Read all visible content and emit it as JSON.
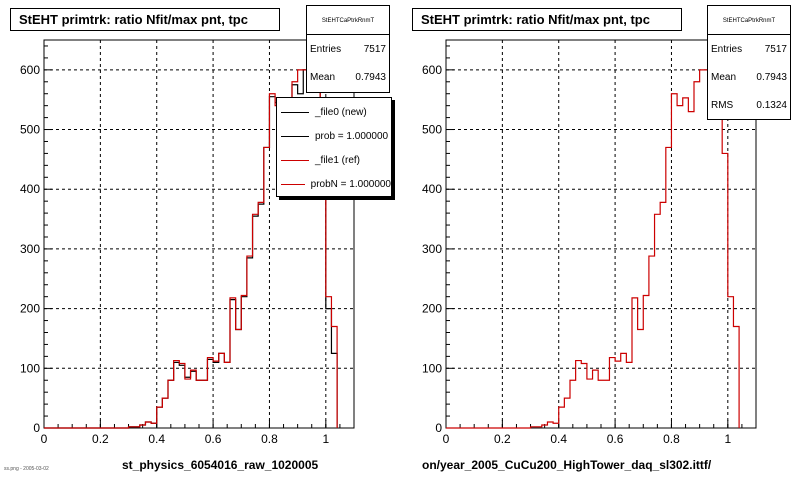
{
  "chart_data": [
    {
      "type": "line",
      "title": "StEHT primtrk: ratio Nfit/max pnt, tpc",
      "xlabel": "st_physics_6054016_raw_1020005",
      "xlim": [
        0,
        1.1
      ],
      "ylim": [
        0,
        650
      ],
      "xticks": [
        "0",
        "0.2",
        "0.4",
        "0.6",
        "0.8",
        "1"
      ],
      "yticks": [
        "0",
        "100",
        "200",
        "300",
        "400",
        "500",
        "600"
      ],
      "grid": true,
      "stats": {
        "header": "StEHTCaPtrkRnmT",
        "entries_label": "Entries",
        "entries": "7517",
        "mean_label": "Mean",
        "mean": "0.7943"
      },
      "legend": [
        "_file0 (new)",
        "prob = 1.000000",
        "_file1 (ref)",
        "probN = 1.000000"
      ],
      "series": [
        {
          "name": "_file0 (new)",
          "color": "#000000",
          "bin_width": 0.02,
          "x_start": 0.02,
          "values": [
            0,
            0,
            0,
            0,
            0,
            0,
            0,
            0,
            0,
            0,
            0,
            0,
            0,
            0,
            2,
            2,
            5,
            10,
            8,
            35,
            50,
            80,
            110,
            105,
            85,
            95,
            80,
            80,
            115,
            110,
            125,
            110,
            215,
            165,
            220,
            285,
            355,
            375,
            470,
            555,
            545,
            550,
            535,
            575,
            560,
            600,
            570,
            610,
            395,
            200,
            125
          ]
        },
        {
          "name": "_file1 (ref)",
          "color": "#cc0000",
          "bin_width": 0.02,
          "x_start": 0.02,
          "values": [
            0,
            0,
            0,
            0,
            0,
            0,
            0,
            0,
            0,
            0,
            0,
            0,
            0,
            0,
            2,
            2,
            5,
            10,
            8,
            35,
            50,
            80,
            113,
            108,
            82,
            97,
            80,
            80,
            118,
            112,
            125,
            110,
            218,
            165,
            222,
            288,
            358,
            378,
            470,
            560,
            540,
            553,
            530,
            580,
            600,
            600,
            578,
            620,
            460,
            220,
            170
          ]
        }
      ]
    },
    {
      "type": "line",
      "title": "StEHT primtrk: ratio Nfit/max pnt, tpc",
      "xlabel": "on/year_2005_CuCu200_HighTower_daq_sl302.ittf/",
      "xlim": [
        0,
        1.1
      ],
      "ylim": [
        0,
        650
      ],
      "xticks": [
        "0",
        "0.2",
        "0.4",
        "0.6",
        "0.8",
        "1"
      ],
      "yticks": [
        "0",
        "100",
        "200",
        "300",
        "400",
        "500",
        "600"
      ],
      "grid": true,
      "stats": {
        "header": "StEHTCaPtrkRnmT",
        "entries_label": "Entries",
        "entries": "7517",
        "mean_label": "Mean",
        "mean": "0.7943",
        "rms_label": "RMS",
        "rms": "0.1324"
      },
      "series": [
        {
          "name": "_file1 (ref)",
          "color": "#cc0000",
          "bin_width": 0.02,
          "x_start": 0.02,
          "values": [
            0,
            0,
            0,
            0,
            0,
            0,
            0,
            0,
            0,
            0,
            0,
            0,
            0,
            0,
            2,
            2,
            5,
            10,
            8,
            35,
            50,
            80,
            113,
            108,
            82,
            97,
            80,
            80,
            118,
            112,
            125,
            110,
            218,
            165,
            222,
            288,
            358,
            378,
            470,
            560,
            540,
            553,
            530,
            580,
            600,
            600,
            578,
            620,
            460,
            220,
            170
          ]
        }
      ]
    }
  ],
  "footer_text": "ss.png - 2005-03-02"
}
